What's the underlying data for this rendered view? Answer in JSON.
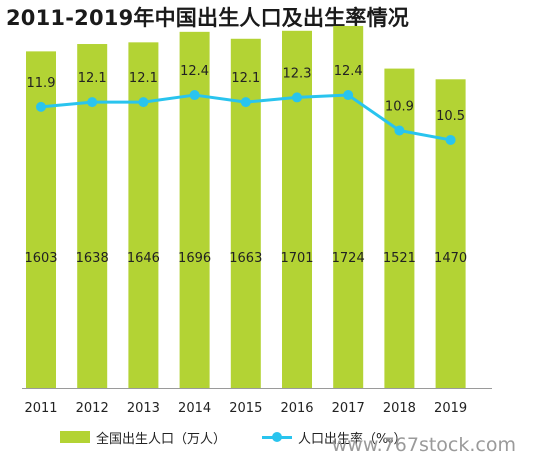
{
  "chart_data": {
    "type": "bar",
    "title": "2011-2019年中国出生人口及出生率情况",
    "categories": [
      "2011",
      "2012",
      "2013",
      "2014",
      "2015",
      "2016",
      "2017",
      "2018",
      "2019"
    ],
    "ylim": [
      0,
      1800
    ],
    "y2lim": [
      0,
      16
    ],
    "series": [
      {
        "name": "全国出生人口（万人）",
        "kind": "bar",
        "color": "#b3d334",
        "values": [
          1603,
          1638,
          1646,
          1696,
          1663,
          1701,
          1724,
          1521,
          1470
        ]
      },
      {
        "name": "人口出生率（‰）",
        "kind": "line",
        "color": "#29c4ee",
        "values": [
          11.9,
          12.1,
          12.1,
          12.4,
          12.1,
          12.3,
          12.4,
          10.9,
          10.5
        ],
        "labels": [
          "11.9",
          "12.1",
          "12.1",
          "12.4",
          "12.1",
          "12.3",
          "12.4",
          "10.9",
          "10.5"
        ]
      }
    ],
    "legend_position": "bottom-left",
    "grid": false
  },
  "watermark": "www.767stock.com"
}
